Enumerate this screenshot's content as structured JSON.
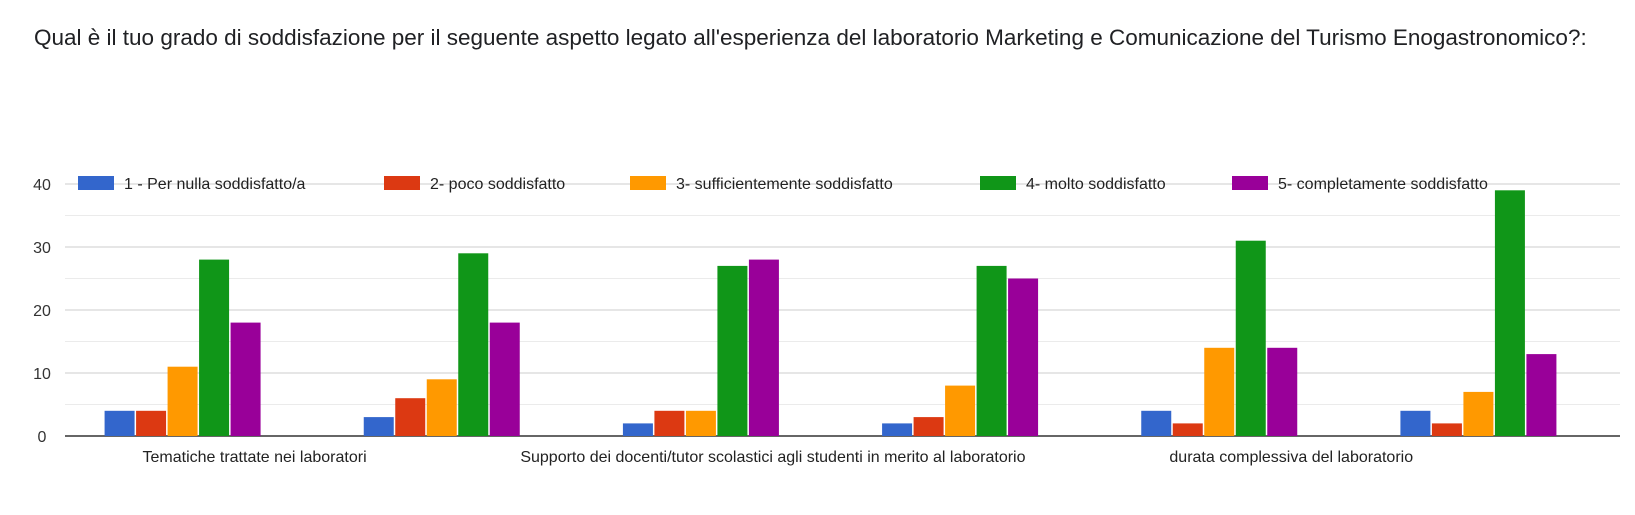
{
  "question": "Qual è il tuo grado di soddisfazione per il seguente aspetto legato all'esperienza del laboratorio Marketing e Comunicazione del Turismo Enogastronomico?:",
  "chart_data": {
    "type": "bar",
    "title": "",
    "xlabel": "",
    "ylabel": "",
    "ylim": [
      0,
      40
    ],
    "yticks": [
      0,
      10,
      20,
      30,
      40
    ],
    "grid": true,
    "legend_position": "top",
    "categories": [
      "Tematiche trattate nei laboratori",
      "",
      "Supporto dei docenti/tutor scolastici agli studenti in merito al laboratorio",
      "",
      "durata complessiva del laboratorio",
      ""
    ],
    "series": [
      {
        "name": "1 - Per nulla soddisfatto/a",
        "color": "#3366cc",
        "values": [
          4,
          3,
          2,
          2,
          4,
          4
        ]
      },
      {
        "name": "2- poco soddisfatto",
        "color": "#dc3912",
        "values": [
          4,
          6,
          4,
          3,
          2,
          2
        ]
      },
      {
        "name": "3- sufficientemente soddisfatto",
        "color": "#ff9900",
        "values": [
          11,
          9,
          4,
          8,
          14,
          7
        ]
      },
      {
        "name": "4- molto soddisfatto",
        "color": "#109618",
        "values": [
          28,
          29,
          27,
          27,
          31,
          39
        ]
      },
      {
        "name": "5- completamente soddisfatto",
        "color": "#990099",
        "values": [
          18,
          18,
          28,
          25,
          14,
          13
        ]
      }
    ]
  }
}
